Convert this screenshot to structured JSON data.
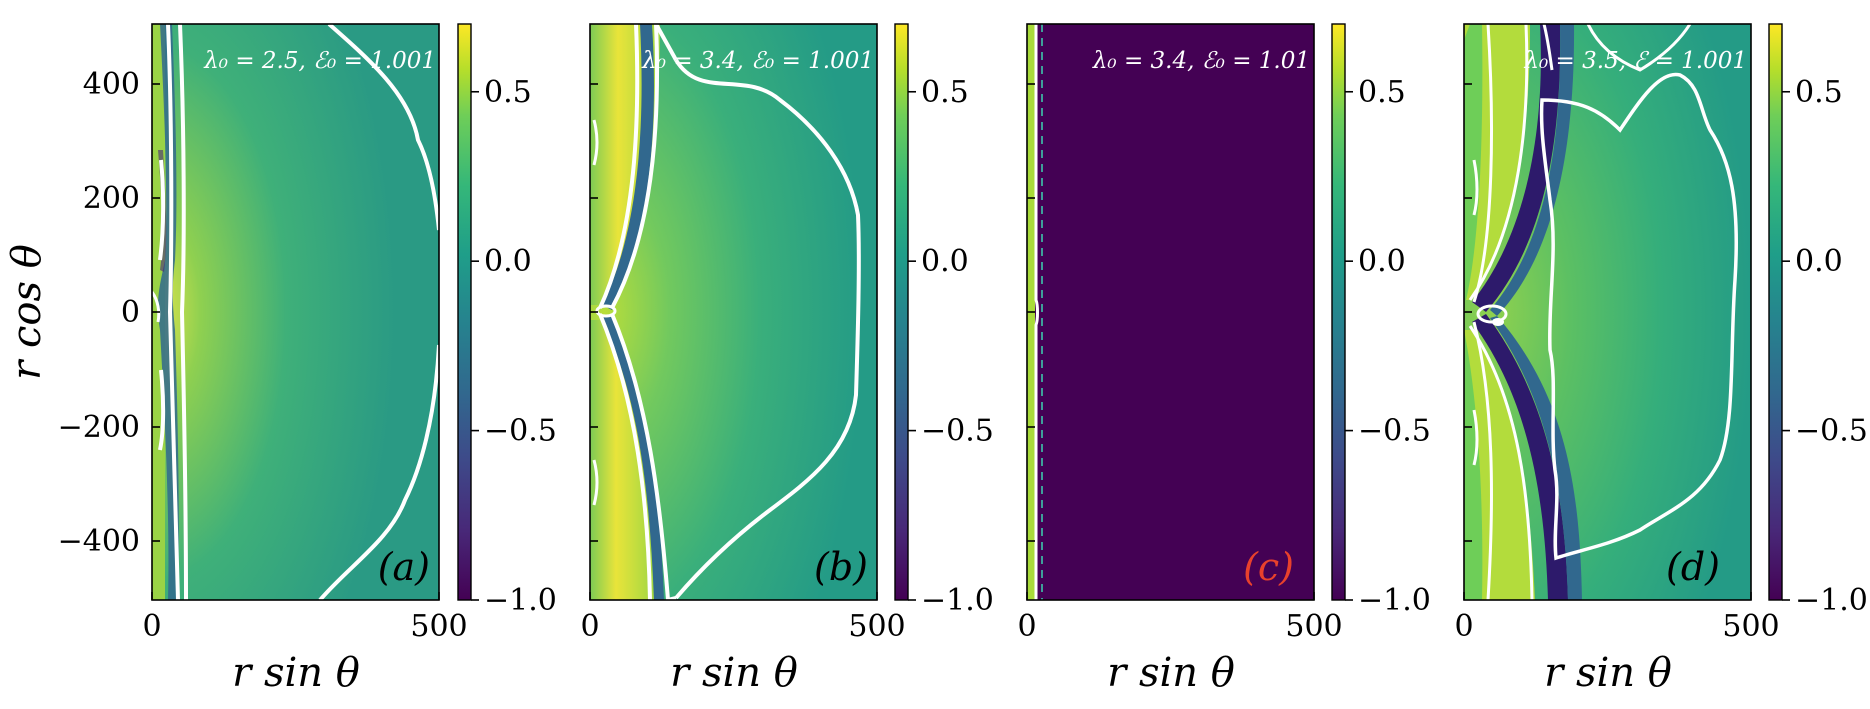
{
  "figure": {
    "ylabel": "r cos θ",
    "xlabel": "r sin θ"
  },
  "colors": {
    "yellow": "#fde725",
    "lime": "#b5de2b",
    "green": "#6ece58",
    "teal_green": "#35b779",
    "teal": "#1f9e89",
    "blue_teal": "#26828e",
    "blue": "#31688e",
    "indigo": "#3e4989",
    "violet": "#482878",
    "dark": "#440154",
    "red_label": "#e8412c",
    "contour": "#ffffff"
  },
  "chart_data": [
    {
      "type": "heatmap",
      "panel": "(a)",
      "label": "λ₀ = 2.5, ℰ₀ = 1.001",
      "xlim": [
        0,
        500
      ],
      "ylim": [
        -500,
        500
      ],
      "xticks": [
        "0",
        "500"
      ],
      "yticks": [
        "400",
        "200",
        "0",
        "−200",
        "−400"
      ],
      "colorbar": {
        "range": [
          -1.0,
          0.7
        ],
        "ticks": [
          "0.5",
          "0.0",
          "−0.5",
          "−1.0"
        ],
        "tick_values": [
          0.5,
          0.0,
          -0.5,
          -1.0
        ]
      },
      "highlight": false
    },
    {
      "type": "heatmap",
      "panel": "(b)",
      "label": "λ₀ = 3.4, ℰ₀ = 1.001",
      "xlim": [
        0,
        500
      ],
      "ylim": [
        -500,
        500
      ],
      "xticks": [
        "0",
        "500"
      ],
      "colorbar": {
        "range": [
          -1.0,
          0.7
        ],
        "ticks": [
          "0.5",
          "0.0",
          "−0.5",
          "−1.0"
        ],
        "tick_values": [
          0.5,
          0.0,
          -0.5,
          -1.0
        ]
      },
      "highlight": false
    },
    {
      "type": "heatmap",
      "panel": "(c)",
      "label": "λ₀ = 3.4, ℰ₀ = 1.01",
      "xlim": [
        0,
        500
      ],
      "ylim": [
        -500,
        500
      ],
      "xticks": [
        "0",
        "500"
      ],
      "colorbar": {
        "range": [
          -1.0,
          0.7
        ],
        "ticks": [
          "0.5",
          "0.0",
          "−0.5",
          "−1.0"
        ],
        "tick_values": [
          0.5,
          0.0,
          -0.5,
          -1.0
        ]
      },
      "highlight": true
    },
    {
      "type": "heatmap",
      "panel": "(d)",
      "label": "λ₀ = 3.5, ℰ = 1.001",
      "xlim": [
        0,
        500
      ],
      "ylim": [
        -500,
        500
      ],
      "xticks": [
        "0",
        "500"
      ],
      "colorbar": {
        "range": [
          -1.0,
          0.7
        ],
        "ticks": [
          "0.5",
          "0.0",
          "−0.5",
          "−1.0"
        ],
        "tick_values": [
          0.5,
          0.0,
          -0.5,
          -1.0
        ]
      },
      "highlight": false
    }
  ]
}
